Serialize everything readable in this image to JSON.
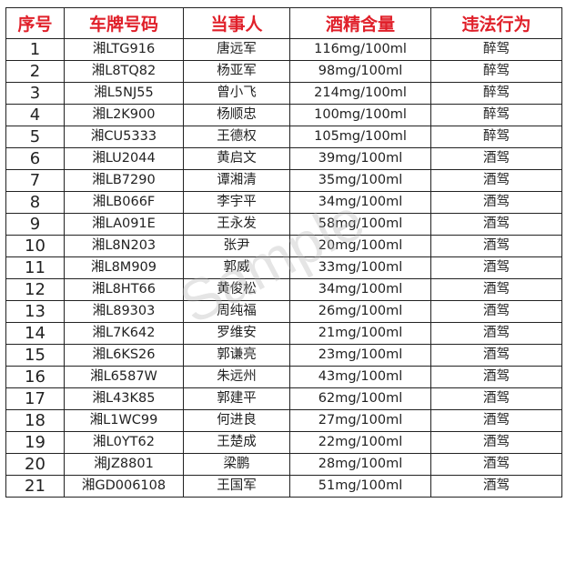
{
  "headers": [
    "序号",
    "车牌号码",
    "当事人",
    "酒精含量",
    "违法行为"
  ],
  "rows": [
    [
      "1",
      "湘LTG916",
      "唐远军",
      "116mg/100ml",
      "醉驾"
    ],
    [
      "2",
      "湘L8TQ82",
      "杨亚军",
      "98mg/100ml",
      "醉驾"
    ],
    [
      "3",
      "湘L5NJ55",
      "曾小飞",
      "214mg/100ml",
      "醉驾"
    ],
    [
      "4",
      "湘L2K900",
      "杨顺忠",
      "100mg/100ml",
      "醉驾"
    ],
    [
      "5",
      "湘CU5333",
      "王德权",
      "105mg/100ml",
      "醉驾"
    ],
    [
      "6",
      "湘LU2044",
      "黄启文",
      "39mg/100ml",
      "酒驾"
    ],
    [
      "7",
      "湘LB7290",
      "谭湘清",
      "35mg/100ml",
      "酒驾"
    ],
    [
      "8",
      "湘LB066F",
      "李宇平",
      "34mg/100ml",
      "酒驾"
    ],
    [
      "9",
      "湘LA091E",
      "王永发",
      "58mg/100ml",
      "酒驾"
    ],
    [
      "10",
      "湘L8N203",
      "张尹",
      "20mg/100ml",
      "酒驾"
    ],
    [
      "11",
      "湘L8M909",
      "郭威",
      "33mg/100ml",
      "酒驾"
    ],
    [
      "12",
      "湘L8HT66",
      "黄俊松",
      "34mg/100ml",
      "酒驾"
    ],
    [
      "13",
      "湘L89303",
      "周纯福",
      "26mg/100ml",
      "酒驾"
    ],
    [
      "14",
      "湘L7K642",
      "罗维安",
      "21mg/100ml",
      "酒驾"
    ],
    [
      "15",
      "湘L6KS26",
      "郭谦亮",
      "23mg/100ml",
      "酒驾"
    ],
    [
      "16",
      "湘L6587W",
      "朱远州",
      "43mg/100ml",
      "酒驾"
    ],
    [
      "17",
      "湘L43K85",
      "郭建平",
      "62mg/100ml",
      "酒驾"
    ],
    [
      "18",
      "湘L1WC99",
      "何进良",
      "27mg/100ml",
      "酒驾"
    ],
    [
      "19",
      "湘L0YT62",
      "王楚成",
      "22mg/100ml",
      "酒驾"
    ],
    [
      "20",
      "湘JZ8801",
      "梁鹏",
      "28mg/100ml",
      "酒驾"
    ],
    [
      "21",
      "湘GD006108",
      "王国军",
      "51mg/100ml",
      "酒驾"
    ]
  ],
  "watermark": "Sample",
  "colors": {
    "header_text": "#e0202a",
    "border": "#222222"
  }
}
